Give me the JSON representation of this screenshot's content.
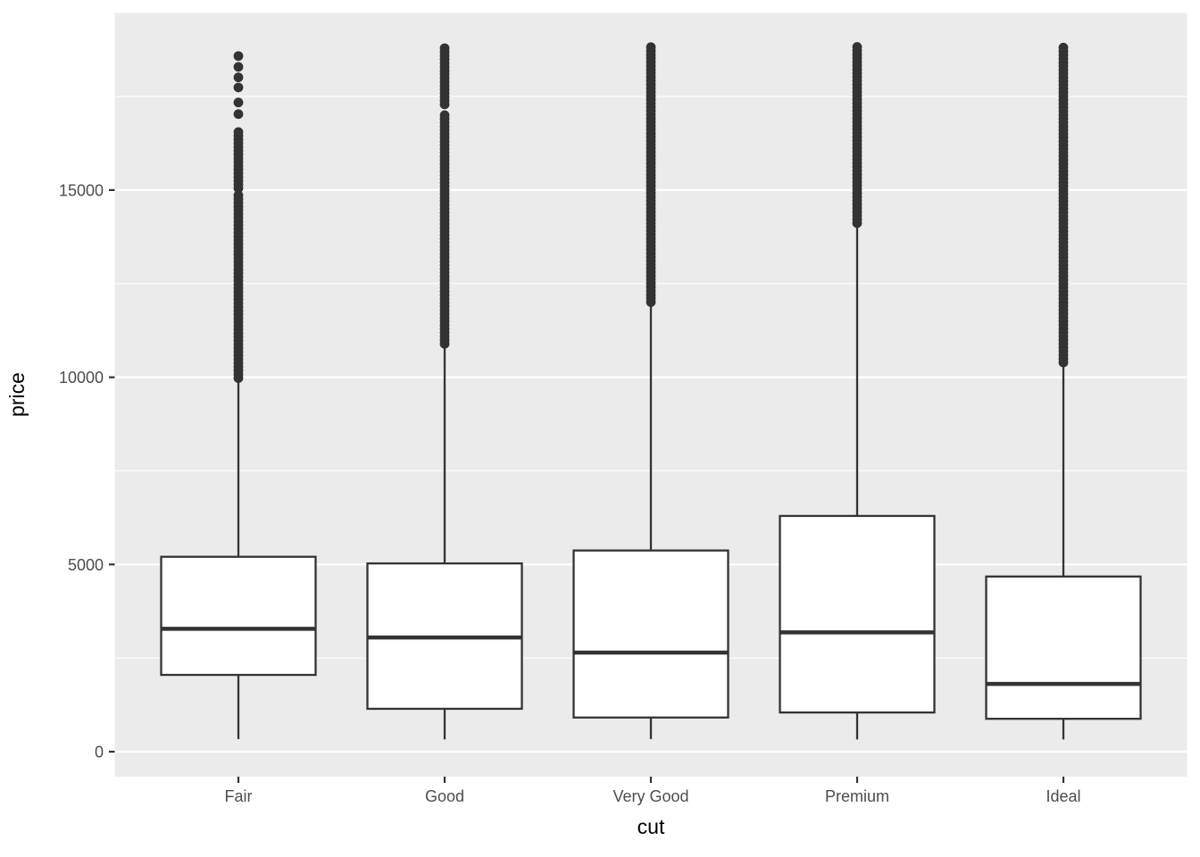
{
  "chart_data": {
    "type": "boxplot",
    "title": "",
    "xlabel": "cut",
    "ylabel": "price",
    "categories": [
      "Fair",
      "Good",
      "Very Good",
      "Premium",
      "Ideal"
    ],
    "y_ticks": [
      0,
      5000,
      10000,
      15000
    ],
    "y_tick_labels": [
      "0",
      "5000",
      "10000",
      "15000"
    ],
    "y_minor_ticks": [
      2500,
      7500,
      12500,
      17500
    ],
    "ylim": [
      -700,
      19760
    ],
    "grid": "major and minor horizontal white gridlines on grey panel",
    "legend": "none",
    "series": [
      {
        "category": "Fair",
        "q1": 2050,
        "median": 3282,
        "q3": 5205,
        "whisker_low": 337,
        "whisker_high": 9938,
        "outlier_points": [
          18580,
          18290,
          18010,
          17740,
          17340,
          17030
        ],
        "outlier_runs": [
          [
            16550,
            14950
          ],
          [
            14860,
            13350
          ],
          [
            13280,
            11150
          ],
          [
            11080,
            9899
          ]
        ]
      },
      {
        "category": "Good",
        "q1": 1145,
        "median": 3050,
        "q3": 5028,
        "whisker_low": 327,
        "whisker_high": 10794,
        "outlier_points": [],
        "outlier_runs": [
          [
            18789,
            17250
          ],
          [
            17000,
            10825
          ]
        ]
      },
      {
        "category": "Very Good",
        "q1": 912,
        "median": 2648,
        "q3": 5373,
        "whisker_low": 336,
        "whisker_high": 12057,
        "outlier_points": [],
        "outlier_runs": [
          [
            18818,
            11994
          ]
        ]
      },
      {
        "category": "Premium",
        "q1": 1046,
        "median": 3185,
        "q3": 6296,
        "whisker_low": 326,
        "whisker_high": 14160,
        "outlier_points": [],
        "outlier_runs": [
          [
            18823,
            14093
          ]
        ]
      },
      {
        "category": "Ideal",
        "q1": 878,
        "median": 1810,
        "q3": 4678,
        "whisker_low": 326,
        "whisker_high": 10372,
        "outlier_points": [],
        "outlier_runs": [
          [
            18806,
            10373
          ]
        ]
      }
    ],
    "colors": {
      "background": "#FFFFFF",
      "panel_bg": "#EBEBEB",
      "grid": "#FFFFFF",
      "box_fill": "#FFFFFF",
      "box_stroke": "#333333",
      "outlier": "#333333",
      "tick_mark": "#333333",
      "tick_label": "#4D4D4D",
      "axis_title": "#000000"
    }
  }
}
